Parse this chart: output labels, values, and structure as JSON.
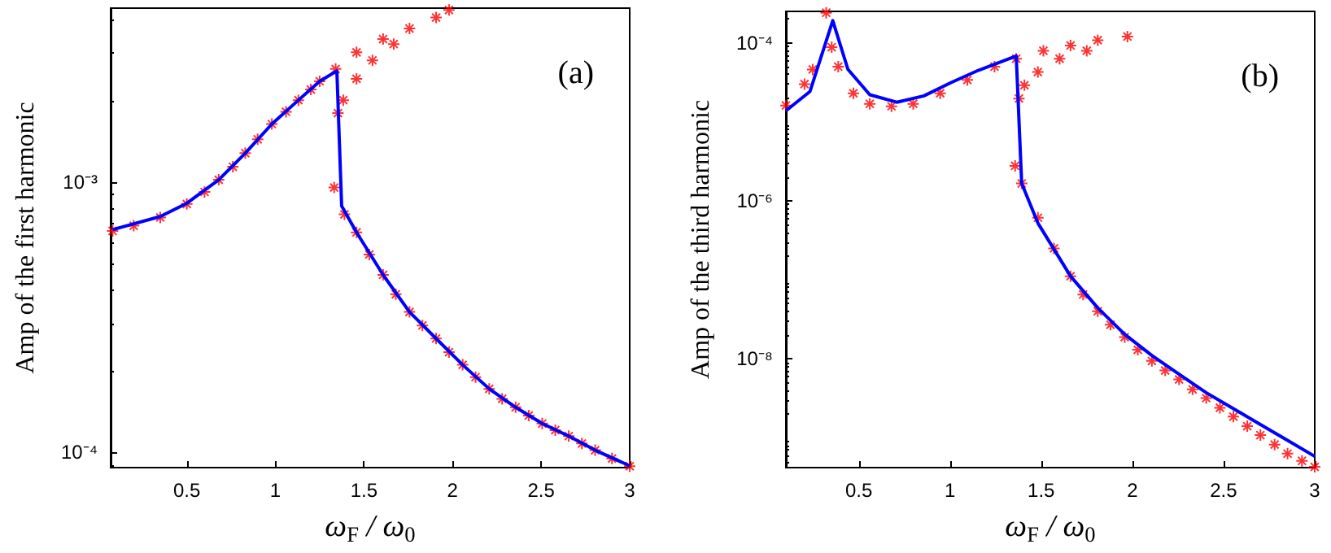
{
  "chart_data": [
    {
      "type": "line",
      "xlabel": "ω$_{F}$ / ω$_{0}$",
      "ylabel": "Amp of the first harmonic",
      "annotations": [
        "(a)"
      ],
      "log": "y",
      "xlim": [
        0.07,
        3
      ],
      "ylim": [
        8.8e-05,
        0.0044
      ],
      "xticks": [
        0.5,
        1,
        1.5,
        2,
        2.5,
        3
      ],
      "yticks": [
        {
          "value": 0.0001,
          "label": "10⁻⁴"
        },
        {
          "value": 0.001,
          "label": "10⁻³"
        }
      ],
      "series": [
        {
          "type": "line",
          "color": "#0000ff",
          "marker": "none",
          "x": [
            0.081,
            0.35,
            0.5,
            0.68,
            0.83,
            0.98,
            1.13,
            1.25,
            1.347,
            1.374,
            1.458,
            1.608,
            1.757,
            1.907,
            2.057,
            2.207,
            2.356,
            2.506,
            2.656,
            2.805,
            3.0
          ],
          "values": [
            0.000667,
            0.000746,
            0.000835,
            0.00102,
            0.00128,
            0.00164,
            0.00201,
            0.00236,
            0.00258,
            0.000816,
            0.000652,
            0.000454,
            0.000331,
            0.000264,
            0.000211,
            0.000172,
            0.000147,
            0.000128,
            0.000115,
            0.000102,
            8.93e-05
          ]
        },
        {
          "type": "scatter",
          "color": "#ff0000",
          "marker": "cross",
          "x": [
            0.081,
            0.2,
            0.35,
            0.5,
            0.6,
            0.68,
            0.76,
            0.83,
            0.9,
            0.98,
            1.06,
            1.13,
            1.2,
            1.25,
            1.34,
            1.458,
            1.608,
            1.757,
            1.907,
            1.98,
            1.383,
            1.458,
            1.548,
            1.668,
            1.353,
            1.332,
            1.39,
            1.458,
            1.53,
            1.608,
            1.68,
            1.757,
            1.83,
            1.907,
            1.98,
            2.057,
            2.13,
            2.207,
            2.28,
            2.356,
            2.43,
            2.506,
            2.58,
            2.656,
            2.73,
            2.805,
            2.9,
            3.0
          ],
          "values": [
            0.00066,
            0.00069,
            0.00074,
            0.00083,
            0.00092,
            0.00102,
            0.00114,
            0.00128,
            0.00144,
            0.00164,
            0.00182,
            0.00201,
            0.0022,
            0.00236,
            0.00262,
            0.00302,
            0.00338,
            0.0037,
            0.00406,
            0.00433,
            0.00201,
            0.00241,
            0.00282,
            0.00324,
            0.0018,
            0.000955,
            0.00076,
            0.000652,
            0.00054,
            0.000454,
            0.000385,
            0.000331,
            0.000295,
            0.000264,
            0.000235,
            0.000211,
            0.00019,
            0.000172,
            0.000158,
            0.000147,
            0.000137,
            0.000128,
            0.000121,
            0.000115,
            0.000108,
            0.000102,
            9.5e-05,
            8.9e-05
          ]
        }
      ]
    },
    {
      "type": "line",
      "xlabel": "ω$_{F}$ / ω$_{0}$",
      "ylabel": "Amp of the third harmonic",
      "annotations": [
        "(b)"
      ],
      "log": "y",
      "xlim": [
        0.1,
        3
      ],
      "ylim": [
        4.2e-10,
        0.00025
      ],
      "xticks": [
        0.5,
        1,
        1.5,
        2,
        2.5,
        3
      ],
      "yticks": [
        {
          "value": 1e-08,
          "label": "10⁻⁸"
        },
        {
          "value": 1e-06,
          "label": "10⁻⁶"
        },
        {
          "value": 0.0001,
          "label": "10⁻⁴"
        }
      ],
      "series": [
        {
          "type": "line",
          "color": "#0000ff",
          "marker": "none",
          "x": [
            0.1,
            0.232,
            0.357,
            0.44,
            0.56,
            0.708,
            0.857,
            1.006,
            1.155,
            1.363,
            1.393,
            1.482,
            1.661,
            1.81,
            1.958,
            2.107,
            2.256,
            2.405,
            2.554,
            2.702,
            2.851,
            3.0
          ],
          "values": [
            1.38e-05,
            2.42e-05,
            0.000191,
            4.62e-05,
            2.2e-05,
            1.77e-05,
            2.13e-05,
            3.14e-05,
            4.48e-05,
            6.8e-05,
            1.66e-06,
            5.22e-07,
            1.11e-07,
            4.41e-08,
            2.04e-08,
            1.1e-08,
            6.38e-09,
            3.72e-09,
            2.34e-09,
            1.47e-09,
            9.25e-10,
            5.82e-10
          ]
        },
        {
          "type": "scatter",
          "color": "#ff0000",
          "marker": "cross",
          "x": [
            0.1,
            0.202,
            0.247,
            0.321,
            0.351,
            0.387,
            0.47,
            0.56,
            0.679,
            0.798,
            0.946,
            1.095,
            1.244,
            1.363,
            1.512,
            1.661,
            1.81,
            1.973,
            1.378,
            1.408,
            1.482,
            1.601,
            1.75,
            1.357,
            1.393,
            1.482,
            1.57,
            1.661,
            1.73,
            1.81,
            1.88,
            1.958,
            2.03,
            2.107,
            2.18,
            2.256,
            2.33,
            2.405,
            2.48,
            2.554,
            2.63,
            2.702,
            2.78,
            2.851,
            2.93,
            3.0
          ],
          "values": [
            1.61e-05,
            3e-05,
            4.6e-05,
            0.00024,
            8.8e-05,
            4.99e-05,
            2.3e-05,
            1.69e-05,
            1.57e-05,
            1.69e-05,
            2.3e-05,
            3.39e-05,
            4.99e-05,
            6.3e-05,
            7.94e-05,
            9.25e-05,
            0.000108,
            0.00012,
            1.97e-05,
            2.9e-05,
            4.27e-05,
            6.3e-05,
            7.94e-05,
            2.77e-06,
            1.66e-06,
            6.1e-07,
            2.5e-07,
            1.11e-07,
            6.5e-08,
            4e-08,
            2.7e-08,
            1.88e-08,
            1.3e-08,
            9.4e-09,
            7.1e-09,
            5.47e-09,
            4.1e-09,
            3.18e-09,
            2.4e-09,
            1.85e-09,
            1.4e-09,
            1.08e-09,
            8.2e-10,
            6.3e-10,
            5.1e-10,
            4.28e-10
          ]
        }
      ]
    }
  ]
}
